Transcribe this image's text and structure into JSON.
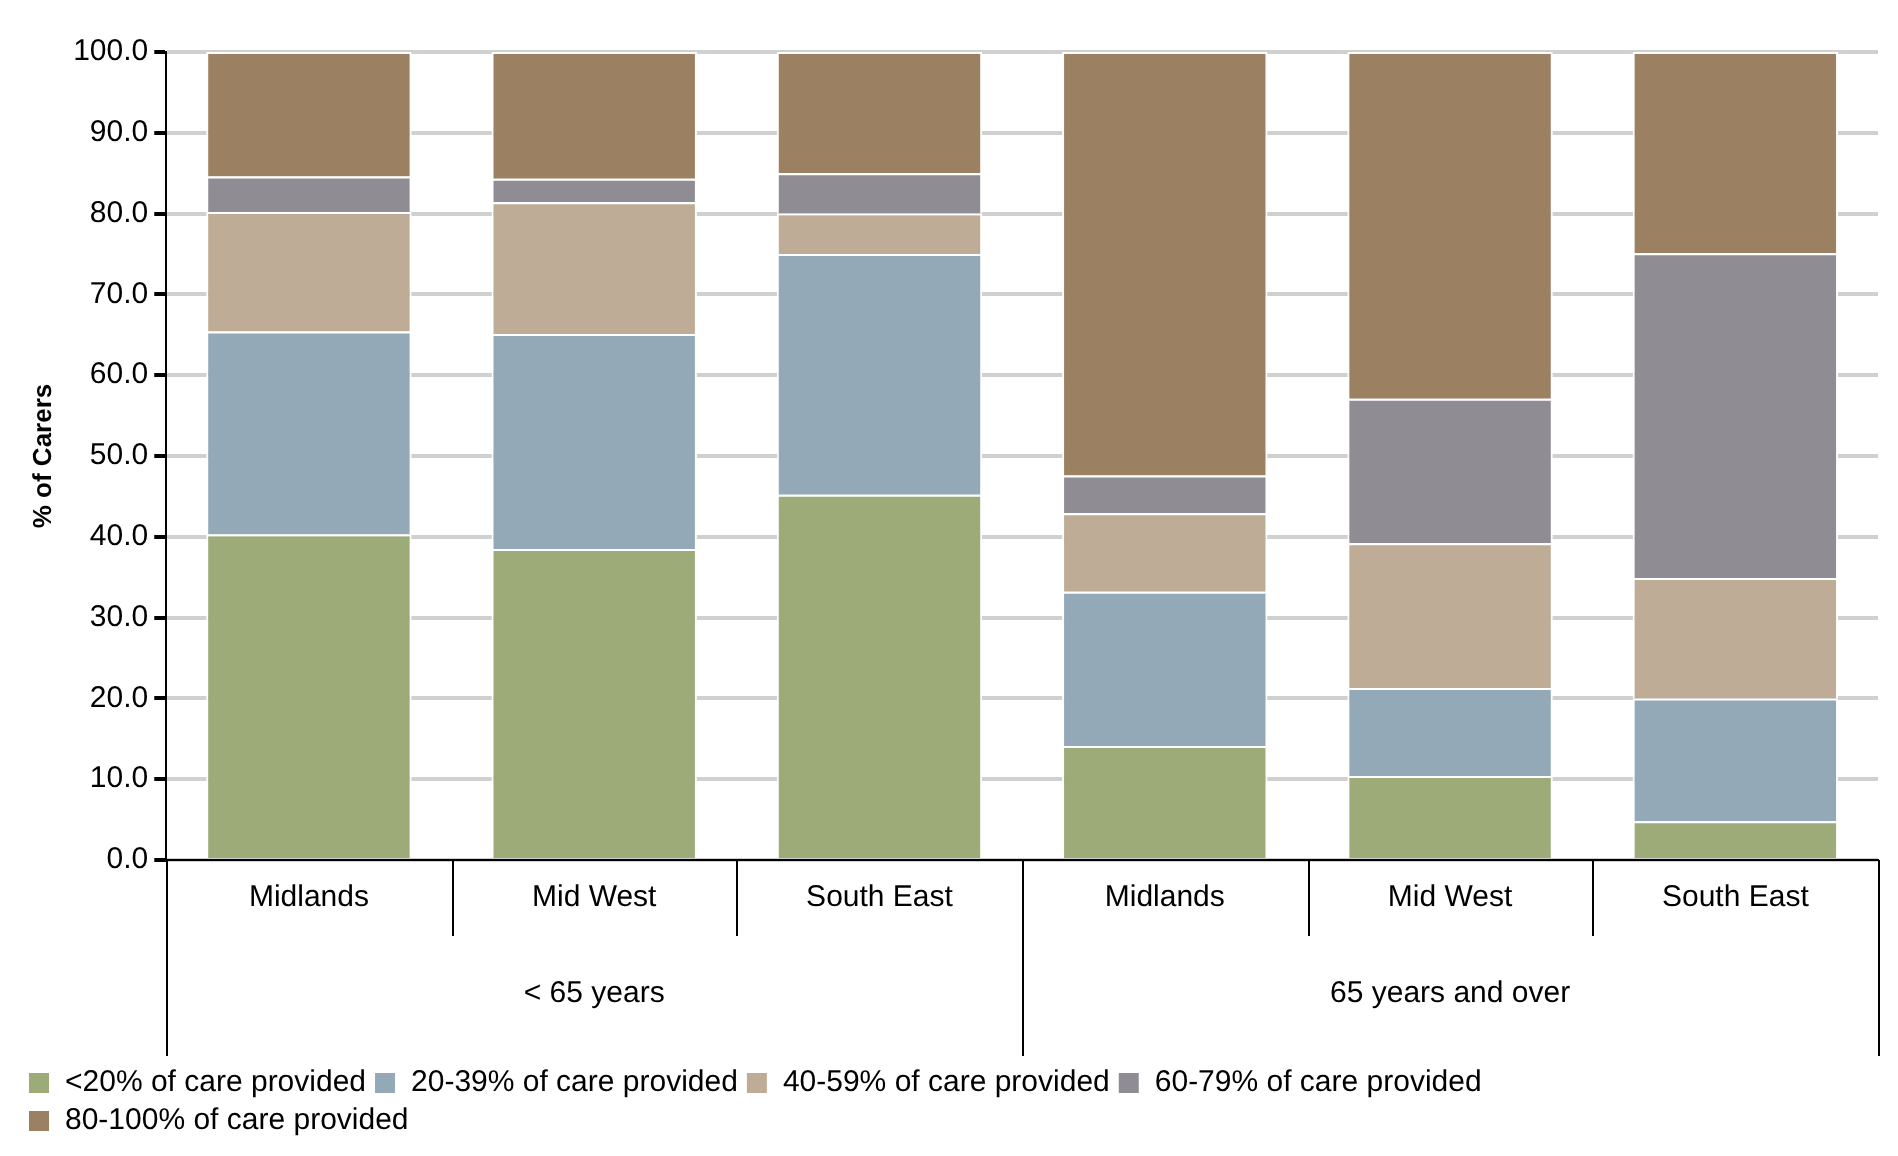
{
  "chart_data": {
    "type": "bar",
    "stacked": true,
    "ylabel": "% of Carers",
    "categories": [
      "Midlands",
      "Mid West",
      "South East",
      "Midlands",
      "Mid West",
      "South East"
    ],
    "annotations": [
      "< 65 years",
      "65 years and over"
    ],
    "series": [
      {
        "name": "<20% of care provided",
        "color": "#9cab78",
        "values": [
          40.3,
          38.5,
          45.2,
          14.1,
          10.4,
          4.8
        ]
      },
      {
        "name": "20-39% of care provided",
        "color": "#94a9b7",
        "values": [
          25.1,
          26.6,
          29.8,
          19.1,
          10.9,
          15.2
        ]
      },
      {
        "name": "40-59% of care provided",
        "color": "#beac97",
        "values": [
          14.8,
          16.3,
          5.0,
          9.7,
          17.9,
          14.9
        ]
      },
      {
        "name": "60-79% of care provided",
        "color": "#8f8d93",
        "values": [
          4.4,
          2.9,
          5.0,
          4.7,
          17.9,
          40.2
        ]
      },
      {
        "name": "80-100% of care provided",
        "color": "#9b8162",
        "values": [
          15.4,
          15.7,
          15.0,
          52.4,
          42.9,
          24.9
        ]
      }
    ],
    "ylim": [
      0,
      100
    ],
    "yticks": [
      {
        "value": 0,
        "label": "0.0"
      },
      {
        "value": 10,
        "label": "10.0"
      },
      {
        "value": 20,
        "label": "20.0"
      },
      {
        "value": 30,
        "label": "30.0"
      },
      {
        "value": 40,
        "label": "40.0"
      },
      {
        "value": 50,
        "label": "50.0"
      },
      {
        "value": 60,
        "label": "60.0"
      },
      {
        "value": 70,
        "label": "70.0"
      },
      {
        "value": 80,
        "label": "80.0"
      },
      {
        "value": 90,
        "label": "90.0"
      },
      {
        "value": 100,
        "label": "100.0"
      }
    ],
    "grid": "y",
    "legend": "bottom"
  }
}
